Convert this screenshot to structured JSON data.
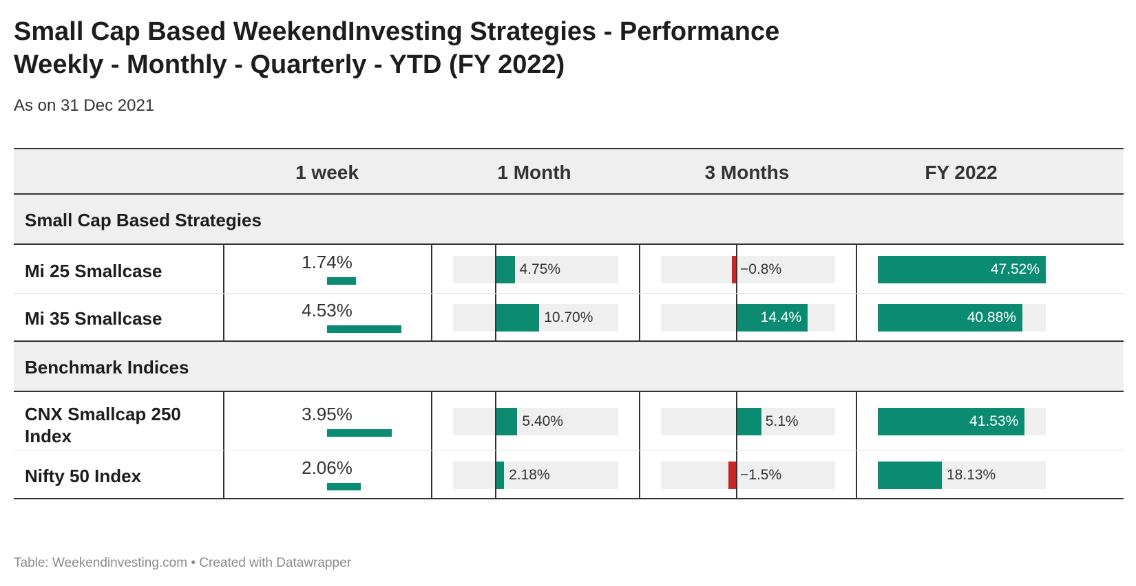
{
  "title_line1": "Small Cap Based WeekendInvesting Strategies - Performance",
  "title_line2": "Weekly - Monthly - Quarterly - YTD (FY 2022)",
  "subtitle": "As on 31 Dec 2021",
  "footer": "Table: Weekendinvesting.com • Created with Datawrapper",
  "columns": [
    "1 week",
    "1 Month",
    "3 Months",
    "FY 2022"
  ],
  "colors": {
    "positive": "#0b8c72",
    "negative": "#c62828",
    "track": "#efefef"
  },
  "chart_data": {
    "type": "table",
    "columns": [
      "1 week",
      "1 Month",
      "3 Months",
      "FY 2022"
    ],
    "groups": [
      {
        "name": "Small Cap Based Strategies",
        "rows": [
          {
            "name": "Mi 25 Smallcase",
            "week": 1.74,
            "week_label": "1.74%",
            "month": 4.75,
            "month_label": "4.75%",
            "quarter": -0.8,
            "quarter_label": "−0.8%",
            "fy": 47.52,
            "fy_label": "47.52%"
          },
          {
            "name": "Mi 35 Smallcase",
            "week": 4.53,
            "week_label": "4.53%",
            "month": 10.7,
            "month_label": "10.70%",
            "quarter": 14.4,
            "quarter_label": "14.4%",
            "fy": 40.88,
            "fy_label": "40.88%"
          }
        ]
      },
      {
        "name": "Benchmark Indices",
        "rows": [
          {
            "name": "CNX Smallcap 250 Index",
            "week": 3.95,
            "week_label": "3.95%",
            "month": 5.4,
            "month_label": "5.40%",
            "quarter": 5.1,
            "quarter_label": "5.1%",
            "fy": 41.53,
            "fy_label": "41.53%"
          },
          {
            "name": "Nifty 50 Index",
            "week": 2.06,
            "week_label": "2.06%",
            "month": 2.18,
            "month_label": "2.18%",
            "quarter": -1.5,
            "quarter_label": "−1.5%",
            "fy": 18.13,
            "fy_label": "18.13%"
          }
        ]
      }
    ]
  }
}
